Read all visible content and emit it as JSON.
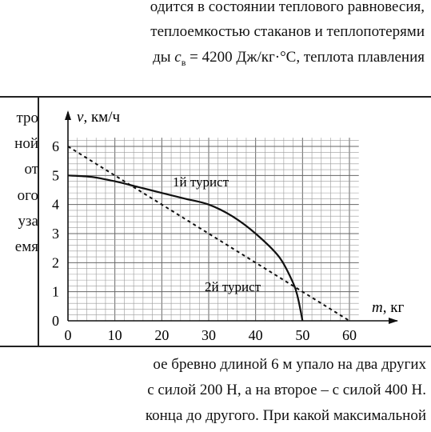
{
  "top_text": {
    "line1": "одится в состоянии теплового равновесия,",
    "line2": "теплоемкостью стаканов и теплопотерями",
    "line3_prefix": "ды",
    "line3_var": "c",
    "line3_sub": "в",
    "line3_rest": "= 4200 Дж/кг·°С,  теплота  плавления"
  },
  "left_fragments": [
    "тро",
    "ной",
    "от",
    "ого",
    "уза",
    "емя"
  ],
  "bottom_text": {
    "line1": "ое бревно длиной 6 м упало на два других",
    "line2": "с силой 200 Н, а на второе – с силой 400 Н.",
    "line3": "конца до другого. При какой максимальной"
  },
  "chart_data": {
    "type": "line",
    "ylabel_var": "v",
    "ylabel_unit": ", км/ч",
    "xlabel_var": "m",
    "xlabel_unit": ", кг",
    "xlim": [
      0,
      60
    ],
    "ylim": [
      0,
      6
    ],
    "xticks": [
      0,
      10,
      20,
      30,
      40,
      50,
      60
    ],
    "yticks": [
      0,
      1,
      2,
      3,
      4,
      5,
      6
    ],
    "grid": true,
    "series": [
      {
        "name": "1й турист",
        "style": "solid",
        "x": [
          0,
          5,
          10,
          15,
          20,
          25,
          30,
          35,
          40,
          45,
          48,
          49,
          50
        ],
        "y": [
          5.0,
          4.95,
          4.8,
          4.6,
          4.4,
          4.2,
          4.0,
          3.6,
          3.0,
          2.2,
          1.3,
          0.8,
          0
        ]
      },
      {
        "name": "2й турист",
        "style": "dashed",
        "x": [
          0,
          60
        ],
        "y": [
          6,
          0
        ]
      }
    ]
  }
}
